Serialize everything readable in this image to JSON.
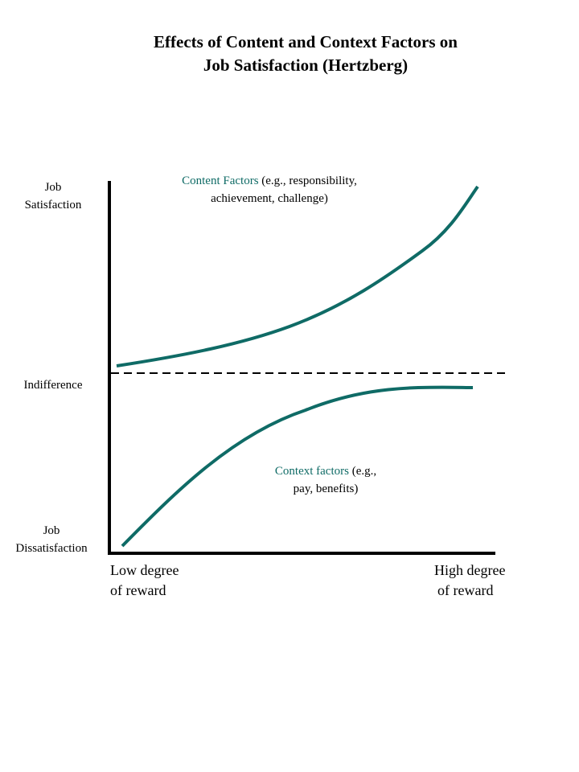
{
  "title": {
    "line1": "Effects of Content and Context Factors on",
    "line2": "Job Satisfaction (Hertzberg)"
  },
  "y_axis": {
    "top_label": {
      "line1": "Job",
      "line2": "Satisfaction"
    },
    "middle_label": "Indifference",
    "bottom_label": {
      "line1": "Job",
      "line2": "Dissatisfaction"
    }
  },
  "x_axis": {
    "left_label": {
      "line1": "Low degree",
      "line2": "of reward"
    },
    "right_label": {
      "line1": "High degree",
      "line2": "of reward"
    }
  },
  "content_curve": {
    "name": "Content Factors",
    "examples_line1": " (e.g., responsibility,",
    "examples_line2": "achievement, challenge)"
  },
  "context_curve": {
    "name": "Context factors",
    "examples_line1": " (e.g.,",
    "examples_line2": "pay, benefits)"
  },
  "colors": {
    "curve": "#0f6b66",
    "axis": "#000000",
    "indifference_line": "#000000"
  }
}
